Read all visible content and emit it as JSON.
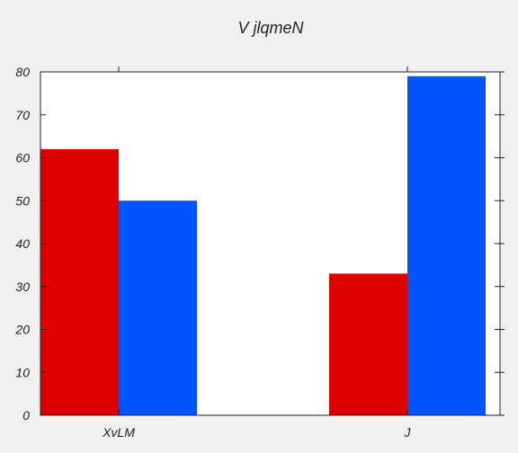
{
  "chart_data": {
    "type": "bar",
    "title": "V jlqmeN",
    "xlabel": "",
    "ylabel": "",
    "categories": [
      "XvLM",
      "J"
    ],
    "series": [
      {
        "values": [
          62,
          33
        ],
        "color": "#dd0000"
      },
      {
        "values": [
          50,
          79
        ],
        "color": "#0055ff"
      }
    ],
    "ylim": [
      0,
      80
    ],
    "yticks": [
      0,
      10,
      20,
      30,
      40,
      50,
      60,
      70,
      80
    ],
    "grid": false,
    "legend": "none"
  },
  "colors": {
    "background": "#f0f0f0",
    "plot_background": "#ffffff",
    "axis": "#222222"
  }
}
